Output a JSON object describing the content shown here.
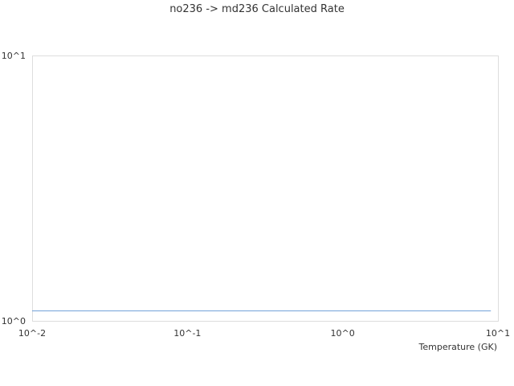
{
  "chart_data": {
    "type": "line",
    "title": "no236 -> md236 Calculated Rate",
    "xlabel": "Temperature (GK)",
    "ylabel": "",
    "xscale": "log",
    "yscale": "log",
    "xlim": [
      0.01,
      10
    ],
    "ylim": [
      1,
      10
    ],
    "x_tick_labels": [
      "10^-2",
      "10^-1",
      "10^0",
      "10^1"
    ],
    "y_tick_labels": [
      "10^0",
      "10^1"
    ],
    "grid": false,
    "series": [
      {
        "x": [
          0.01,
          0.1,
          1,
          9
        ],
        "values": [
          1.09,
          1.09,
          1.09,
          1.09
        ],
        "color": "#6f9fd8"
      }
    ]
  }
}
